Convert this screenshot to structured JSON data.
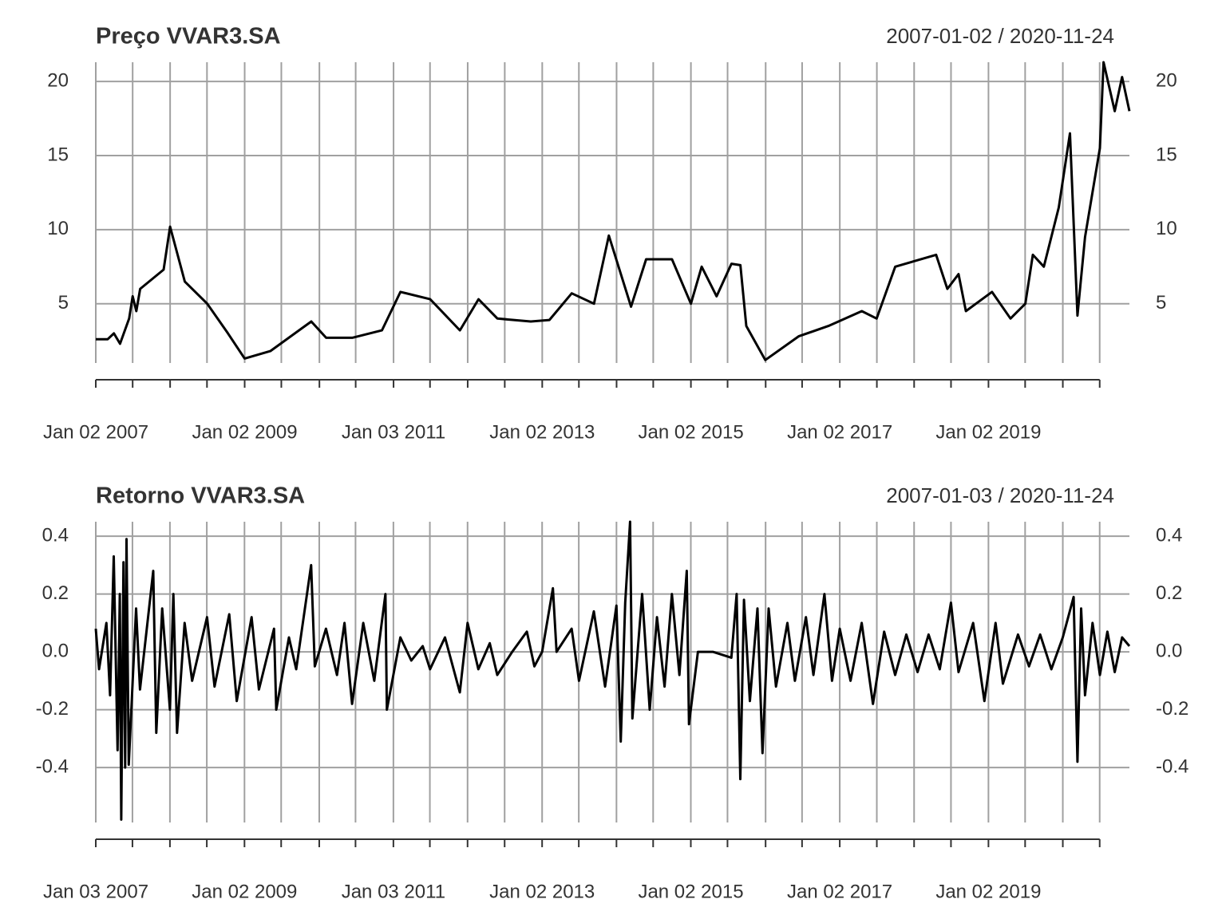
{
  "chart_data": [
    {
      "type": "line",
      "title": "Preço VVAR3.SA",
      "subtitle": "2007-01-02 / 2020-11-24",
      "color": "#000000",
      "grid": true,
      "xlim": [
        "2007-01-02",
        "2020-11-24"
      ],
      "ylim": [
        1.0,
        21.3
      ],
      "yticks": [
        5,
        10,
        15,
        20
      ],
      "xticks": [
        {
          "value": "2007-01-02",
          "label": "Jan 02 2007"
        },
        {
          "value": "2009-01-02",
          "label": "Jan 02 2009"
        },
        {
          "value": "2011-01-03",
          "label": "Jan 03 2011"
        },
        {
          "value": "2013-01-02",
          "label": "Jan 02 2013"
        },
        {
          "value": "2015-01-02",
          "label": "Jan 02 2015"
        },
        {
          "value": "2017-01-02",
          "label": "Jan 02 2017"
        },
        {
          "value": "2019-01-02",
          "label": "Jan 02 2019"
        }
      ],
      "xgrid": [
        "2007-01-02",
        "2007-07-02",
        "2008-01-02",
        "2008-07-01",
        "2009-01-02",
        "2009-07-01",
        "2010-01-04",
        "2010-07-01",
        "2011-01-03",
        "2011-07-01",
        "2012-01-02",
        "2012-07-02",
        "2013-01-02",
        "2013-07-01",
        "2014-01-02",
        "2014-07-01",
        "2015-01-02",
        "2015-07-01",
        "2016-01-04",
        "2016-07-01",
        "2017-01-02",
        "2017-07-03",
        "2018-01-02",
        "2018-07-02",
        "2019-01-02",
        "2019-07-01",
        "2020-01-02",
        "2020-07-01"
      ],
      "x": [
        "2007-01-02",
        "2007-03-01",
        "2007-04-01",
        "2007-05-01",
        "2007-06-15",
        "2007-07-02",
        "2007-07-20",
        "2007-08-08",
        "2007-12-01",
        "2008-01-02",
        "2008-03-14",
        "2008-07-02",
        "2008-10-12",
        "2009-01-02",
        "2009-05-08",
        "2009-11-25",
        "2010-02-06",
        "2010-06-14",
        "2010-11-07",
        "2011-02-06",
        "2011-07-02",
        "2011-11-25",
        "2012-02-24",
        "2012-05-27",
        "2012-11-07",
        "2013-02-06",
        "2013-05-27",
        "2013-09-13",
        "2013-11-25",
        "2014-03-14",
        "2014-05-27",
        "2014-10-01",
        "2015-01-02",
        "2015-02-24",
        "2015-05-08",
        "2015-07-20",
        "2015-09-02",
        "2015-10-01",
        "2016-01-02",
        "2016-06-14",
        "2016-11-07",
        "2017-04-20",
        "2017-07-02",
        "2017-10-01",
        "2018-04-20",
        "2018-06-14",
        "2018-08-08",
        "2018-09-13",
        "2019-01-19",
        "2019-04-20",
        "2019-07-02",
        "2019-08-08",
        "2019-10-01",
        "2019-12-13",
        "2020-02-06",
        "2020-03-14",
        "2020-04-20",
        "2020-07-02",
        "2020-07-20",
        "2020-09-13",
        "2020-10-19",
        "2020-11-24"
      ],
      "values": [
        2.6,
        2.6,
        3.0,
        2.3,
        4.0,
        5.5,
        4.5,
        6.0,
        7.3,
        10.2,
        6.5,
        5.0,
        3.0,
        1.3,
        1.8,
        3.8,
        2.7,
        2.7,
        3.2,
        5.8,
        5.3,
        3.2,
        5.3,
        4.0,
        3.8,
        3.9,
        5.7,
        5.0,
        9.6,
        4.8,
        8.0,
        8.0,
        5.0,
        7.5,
        5.5,
        7.7,
        7.6,
        3.5,
        1.2,
        2.8,
        3.5,
        4.5,
        4.0,
        7.5,
        8.3,
        6.0,
        7.0,
        4.5,
        5.8,
        4.0,
        5.0,
        8.3,
        7.5,
        11.5,
        16.5,
        4.2,
        9.5,
        15.5,
        21.3,
        18.0,
        20.3,
        18.0
      ]
    },
    {
      "type": "line",
      "title": "Retorno VVAR3.SA",
      "subtitle": "2007-01-03 / 2020-11-24",
      "color": "#000000",
      "grid": true,
      "xlim": [
        "2007-01-03",
        "2020-11-24"
      ],
      "ylim": [
        -0.59,
        0.45
      ],
      "yticks": [
        -0.4,
        -0.2,
        {
          "value": 0,
          "label": "0.0"
        },
        0.2,
        0.4
      ],
      "xticks": [
        {
          "value": "2007-01-03",
          "label": "Jan 03 2007"
        },
        {
          "value": "2009-01-02",
          "label": "Jan 02 2009"
        },
        {
          "value": "2011-01-03",
          "label": "Jan 03 2011"
        },
        {
          "value": "2013-01-02",
          "label": "Jan 02 2013"
        },
        {
          "value": "2015-01-02",
          "label": "Jan 02 2015"
        },
        {
          "value": "2017-01-02",
          "label": "Jan 02 2017"
        },
        {
          "value": "2019-01-02",
          "label": "Jan 02 2019"
        }
      ],
      "xgrid": [
        "2007-01-03",
        "2007-07-02",
        "2008-01-02",
        "2008-07-01",
        "2009-01-02",
        "2009-07-01",
        "2010-01-04",
        "2010-07-01",
        "2011-01-03",
        "2011-07-01",
        "2012-01-02",
        "2012-07-02",
        "2013-01-02",
        "2013-07-01",
        "2014-01-02",
        "2014-07-01",
        "2015-01-02",
        "2015-07-01",
        "2016-01-04",
        "2016-07-01",
        "2017-01-02",
        "2017-07-03",
        "2018-01-02",
        "2018-07-02",
        "2019-01-02",
        "2019-07-01",
        "2020-01-02",
        "2020-07-01"
      ],
      "x": [
        "2007-01-03",
        "2007-01-19",
        "2007-02-24",
        "2007-03-14",
        "2007-04-01",
        "2007-04-20",
        "2007-05-01",
        "2007-05-08",
        "2007-05-19",
        "2007-05-27",
        "2007-06-03",
        "2007-06-14",
        "2007-07-20",
        "2007-08-08",
        "2007-10-12",
        "2007-10-27",
        "2007-11-25",
        "2008-01-02",
        "2008-01-19",
        "2008-02-06",
        "2008-03-14",
        "2008-04-20",
        "2008-07-02",
        "2008-08-08",
        "2008-10-19",
        "2008-11-25",
        "2009-02-06",
        "2009-03-14",
        "2009-05-27",
        "2009-06-07",
        "2009-08-08",
        "2009-09-13",
        "2009-11-25",
        "2009-12-13",
        "2010-02-06",
        "2010-04-01",
        "2010-05-08",
        "2010-06-14",
        "2010-08-08",
        "2010-10-01",
        "2010-11-25",
        "2010-12-02",
        "2011-02-06",
        "2011-04-01",
        "2011-05-27",
        "2011-07-02",
        "2011-09-13",
        "2011-11-25",
        "2012-01-02",
        "2012-02-24",
        "2012-04-20",
        "2012-05-27",
        "2012-08-08",
        "2012-10-19",
        "2012-11-25",
        "2013-01-02",
        "2013-02-24",
        "2013-03-14",
        "2013-05-27",
        "2013-07-02",
        "2013-09-13",
        "2013-11-07",
        "2014-01-02",
        "2014-01-23",
        "2014-02-14",
        "2014-03-10",
        "2014-03-21",
        "2014-05-08",
        "2014-06-14",
        "2014-07-20",
        "2014-08-26",
        "2014-10-01",
        "2014-11-07",
        "2014-12-13",
        "2014-12-24",
        "2015-02-06",
        "2015-04-20",
        "2015-07-20",
        "2015-08-15",
        "2015-09-02",
        "2015-09-20",
        "2015-10-19",
        "2015-11-25",
        "2015-12-20",
        "2016-01-19",
        "2016-02-24",
        "2016-04-20",
        "2016-05-27",
        "2016-07-20",
        "2016-08-26",
        "2016-10-19",
        "2016-11-25",
        "2017-01-02",
        "2017-02-24",
        "2017-04-20",
        "2017-06-14",
        "2017-08-08",
        "2017-10-01",
        "2017-11-25",
        "2018-01-19",
        "2018-03-14",
        "2018-05-08",
        "2018-07-02",
        "2018-08-08",
        "2018-10-19",
        "2018-12-13",
        "2019-02-06",
        "2019-03-14",
        "2019-05-27",
        "2019-07-20",
        "2019-09-13",
        "2019-11-07",
        "2020-01-02",
        "2020-02-24",
        "2020-03-14",
        "2020-04-01",
        "2020-04-20",
        "2020-05-27",
        "2020-07-02",
        "2020-08-08",
        "2020-09-13",
        "2020-10-19",
        "2020-11-24"
      ],
      "values": [
        0.08,
        -0.06,
        0.1,
        -0.15,
        0.33,
        -0.34,
        0.2,
        -0.58,
        0.31,
        -0.4,
        0.39,
        -0.39,
        0.15,
        -0.13,
        0.28,
        -0.28,
        0.15,
        -0.2,
        0.2,
        -0.28,
        0.1,
        -0.1,
        0.12,
        -0.12,
        0.13,
        -0.17,
        0.12,
        -0.13,
        0.08,
        -0.2,
        0.05,
        -0.06,
        0.3,
        -0.05,
        0.08,
        -0.08,
        0.1,
        -0.18,
        0.1,
        -0.1,
        0.2,
        -0.2,
        0.05,
        -0.03,
        0.02,
        -0.06,
        0.05,
        -0.14,
        0.1,
        -0.06,
        0.03,
        -0.08,
        0,
        0.07,
        -0.05,
        0,
        0.22,
        0,
        0.08,
        -0.1,
        0.14,
        -0.12,
        0.16,
        -0.31,
        0.17,
        0.45,
        -0.23,
        0.2,
        -0.2,
        0.12,
        -0.12,
        0.2,
        -0.08,
        0.28,
        -0.25,
        0,
        0,
        -0.02,
        0.2,
        -0.44,
        0.18,
        -0.17,
        0.15,
        -0.35,
        0.15,
        -0.12,
        0.1,
        -0.1,
        0.12,
        -0.08,
        0.2,
        -0.1,
        0.08,
        -0.1,
        0.1,
        -0.18,
        0.07,
        -0.08,
        0.06,
        -0.07,
        0.06,
        -0.06,
        0.17,
        -0.07,
        0.1,
        -0.17,
        0.1,
        -0.11,
        0.06,
        -0.05,
        0.06,
        -0.06,
        0.05,
        0.19,
        -0.38,
        0.15,
        -0.15,
        0.1,
        -0.08,
        0.07,
        -0.07,
        0.05,
        0.02
      ]
    }
  ]
}
